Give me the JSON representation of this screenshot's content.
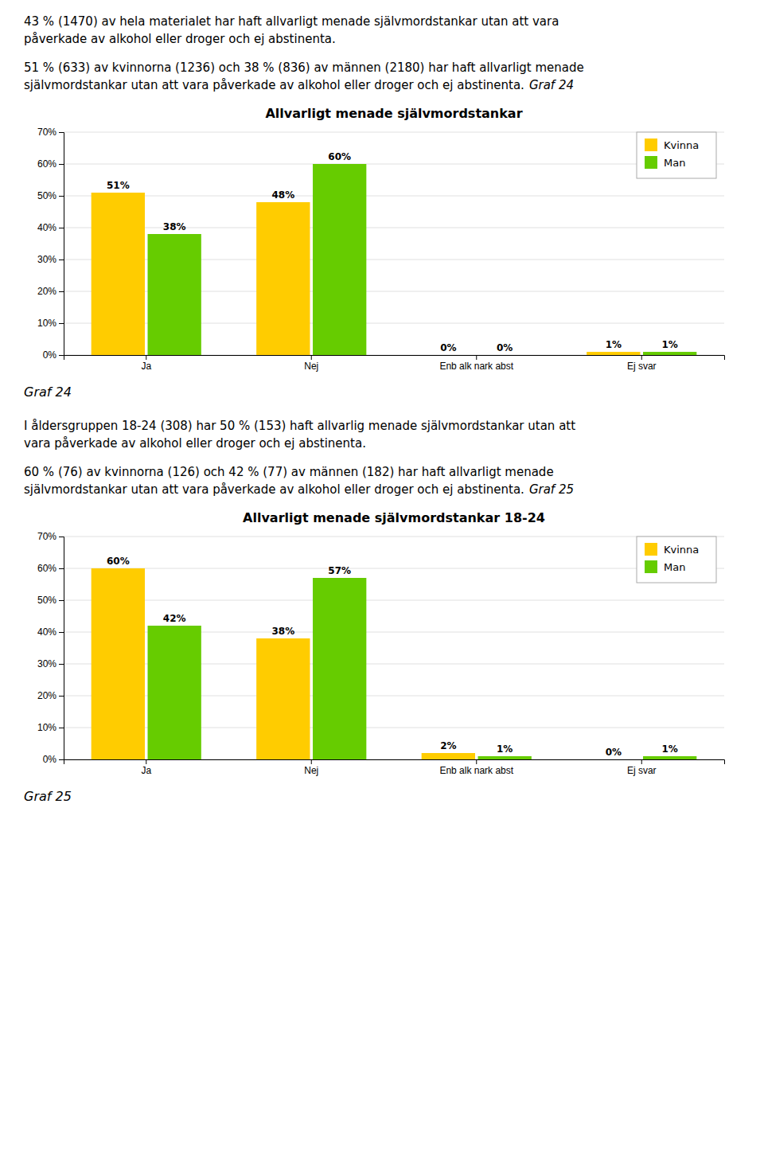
{
  "chart_data": [
    {
      "type": "bar",
      "annotations": [
        [
          [
            "43 % (1470) av hela materialet har haft allvarligt menade självmordstankar utan att vara"
          ],
          [
            "påverkade av alkohol eller droger och ej abstinenta."
          ]
        ],
        [
          [
            "51 % (633) av kvinnorna (1236) och 38 % (836) av männen (2180) har haft allvarligt menade"
          ],
          [
            "självmordstankar utan att vara påverkade av alkohol eller droger och ej abstinenta.",
            "Graf 24"
          ]
        ]
      ],
      "title": "Allvarligt menade självmordstankar",
      "categories": [
        "Ja",
        "Nej",
        "Enb alk nark abst",
        "Ej svar"
      ],
      "series": [
        {
          "name": "Kvinna",
          "color": "#ffcc00",
          "values": [
            51,
            48,
            0,
            1
          ],
          "value_labels": [
            "51%",
            "48%",
            "0%",
            "1%"
          ]
        },
        {
          "name": "Man",
          "color": "#66cc00",
          "values": [
            38,
            60,
            0,
            1
          ],
          "value_labels": [
            "38%",
            "60%",
            "0%",
            "1%"
          ]
        }
      ],
      "ylim": [
        0,
        70
      ],
      "yticks": [
        {
          "value": 0,
          "label": "0%"
        },
        {
          "value": 10,
          "label": "10%"
        },
        {
          "value": 20,
          "label": "20%"
        },
        {
          "value": 30,
          "label": "30%"
        },
        {
          "value": 40,
          "label": "40%"
        },
        {
          "value": 50,
          "label": "50%"
        },
        {
          "value": 60,
          "label": "60%"
        },
        {
          "value": 70,
          "label": "70%"
        }
      ],
      "grid": true,
      "legend": "upper right",
      "data_labels": true,
      "caption": "Graf 24"
    },
    {
      "type": "bar",
      "annotations": [
        [
          [
            "I åldersgruppen 18-24 (308) har 50 % (153) haft allvarlig menade självmordstankar utan att"
          ],
          [
            "vara påverkade av alkohol eller droger och ej abstinenta."
          ]
        ],
        [
          [
            "60 % (76) av kvinnorna (126) och 42 % (77) av männen (182) har haft allvarligt menade"
          ],
          [
            "självmordstankar utan att vara påverkade av alkohol eller droger och ej abstinenta.",
            "Graf 25"
          ]
        ]
      ],
      "title": "Allvarligt menade självmordstankar 18-24",
      "categories": [
        "Ja",
        "Nej",
        "Enb alk nark abst",
        "Ej svar"
      ],
      "series": [
        {
          "name": "Kvinna",
          "color": "#ffcc00",
          "values": [
            60,
            38,
            2,
            0
          ],
          "value_labels": [
            "60%",
            "38%",
            "2%",
            "0%"
          ]
        },
        {
          "name": "Man",
          "color": "#66cc00",
          "values": [
            42,
            57,
            1,
            1
          ],
          "value_labels": [
            "42%",
            "57%",
            "1%",
            "1%"
          ]
        }
      ],
      "ylim": [
        0,
        70
      ],
      "yticks": [
        {
          "value": 0,
          "label": "0%"
        },
        {
          "value": 10,
          "label": "10%"
        },
        {
          "value": 20,
          "label": "20%"
        },
        {
          "value": 30,
          "label": "30%"
        },
        {
          "value": 40,
          "label": "40%"
        },
        {
          "value": 50,
          "label": "50%"
        },
        {
          "value": 60,
          "label": "60%"
        },
        {
          "value": 70,
          "label": "70%"
        }
      ],
      "grid": true,
      "legend": "upper right",
      "data_labels": true,
      "caption": "Graf 25"
    }
  ]
}
